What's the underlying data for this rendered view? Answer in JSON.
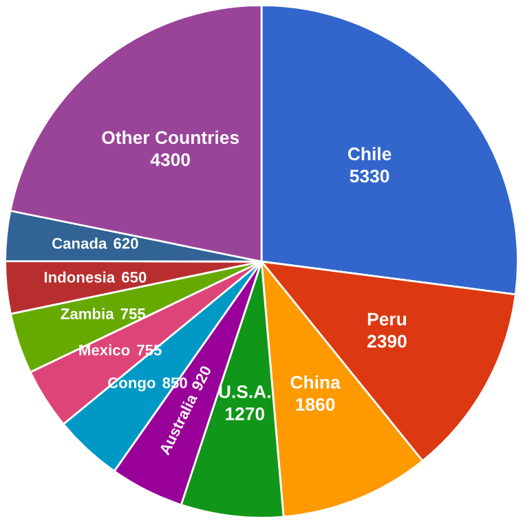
{
  "chart_data": {
    "type": "pie",
    "categories": [
      "Chile",
      "Peru",
      "China",
      "U.S.A.",
      "Australia",
      "Congo",
      "Mexico",
      "Zambia",
      "Indonesia",
      "Canada",
      "Other Countries"
    ],
    "values": [
      5330,
      2390,
      1860,
      1270,
      920,
      850,
      755,
      755,
      650,
      620,
      4300
    ],
    "colors": [
      "#3366cc",
      "#dc3912",
      "#ff9900",
      "#109618",
      "#990099",
      "#0099c6",
      "#dd4477",
      "#66aa00",
      "#b82e2e",
      "#316395",
      "#994499"
    ],
    "data_labels": true,
    "legend": false
  }
}
